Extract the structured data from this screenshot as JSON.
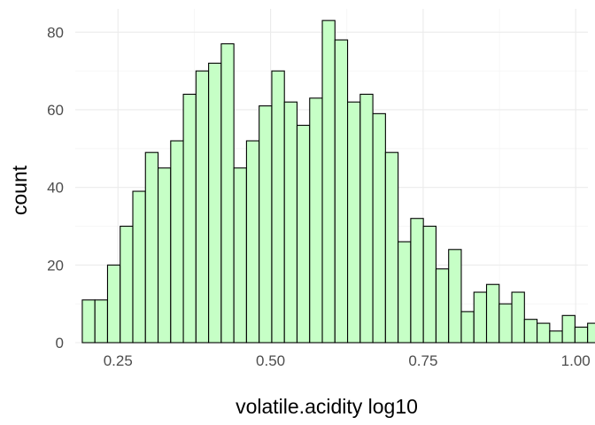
{
  "chart_data": {
    "type": "bar",
    "subtype": "histogram",
    "xlabel": "volatile.acidity log10",
    "ylabel": "count",
    "xlim": [
      0.18,
      1.02
    ],
    "ylim": [
      0,
      86
    ],
    "x_ticks": [
      0.25,
      0.5,
      0.75,
      1.0
    ],
    "x_tick_labels": [
      "0.25",
      "0.50",
      "0.75",
      "1.00"
    ],
    "y_ticks": [
      0,
      20,
      40,
      60,
      80
    ],
    "y_tick_labels": [
      "0",
      "20",
      "40",
      "60",
      "80"
    ],
    "grid": true,
    "colors": {
      "bar_fill": "#c6ffc6",
      "bar_outline": "#000000",
      "grid": "#ebebeb"
    },
    "bins": {
      "start": 0.1915,
      "width": 0.0207,
      "counts": [
        11,
        11,
        20,
        30,
        39,
        49,
        45,
        52,
        64,
        70,
        72,
        77,
        45,
        52,
        61,
        70,
        62,
        56,
        63,
        83,
        78,
        62,
        64,
        59,
        49,
        26,
        32,
        30,
        19,
        24,
        8,
        13,
        15,
        10,
        13,
        6,
        5,
        3,
        7,
        4,
        5
      ]
    }
  }
}
